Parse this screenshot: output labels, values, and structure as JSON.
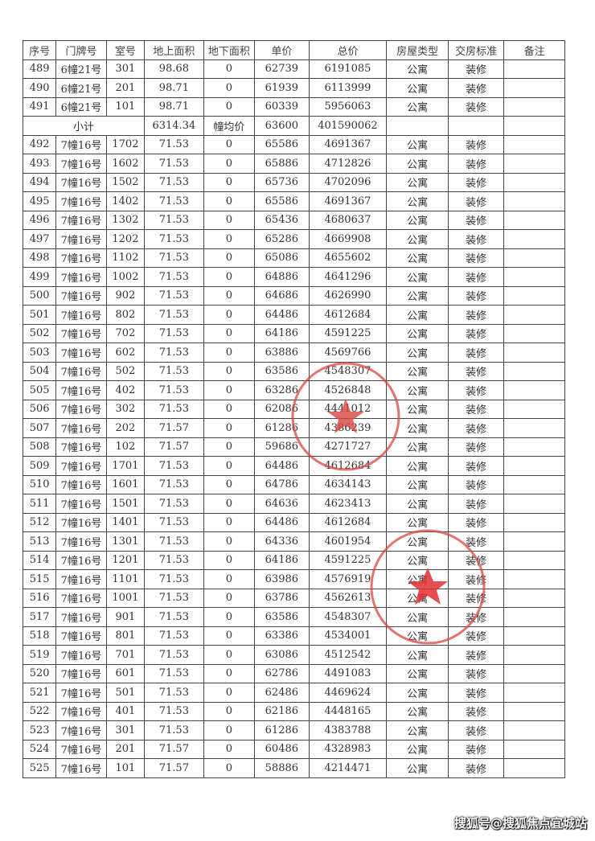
{
  "headers": [
    "序号",
    "门牌号",
    "室号",
    "地上面积",
    "地下面积",
    "单价",
    "总价",
    "房屋类型",
    "交房标准",
    "备注"
  ],
  "rows_top": [
    [
      "489",
      "6幢21号",
      "301",
      "98.68",
      "0",
      "62739",
      "6191085",
      "公寓",
      "装修",
      ""
    ],
    [
      "490",
      "6幢21号",
      "201",
      "98.71",
      "0",
      "61939",
      "6113999",
      "公寓",
      "装修",
      ""
    ],
    [
      "491",
      "6幢21号",
      "101",
      "98.71",
      "0",
      "60339",
      "5956063",
      "公寓",
      "装修",
      ""
    ]
  ],
  "subtotal": {
    "label": "小计",
    "area": "6314.34",
    "avg_label": "幢均价",
    "avg_price": "63600",
    "total": "401590062"
  },
  "rows": [
    [
      "492",
      "7幢16号",
      "1702",
      "71.53",
      "0",
      "65586",
      "4691367",
      "公寓",
      "装修",
      ""
    ],
    [
      "493",
      "7幢16号",
      "1602",
      "71.53",
      "0",
      "65886",
      "4712826",
      "公寓",
      "装修",
      ""
    ],
    [
      "494",
      "7幢16号",
      "1502",
      "71.53",
      "0",
      "65736",
      "4702096",
      "公寓",
      "装修",
      ""
    ],
    [
      "495",
      "7幢16号",
      "1402",
      "71.53",
      "0",
      "65586",
      "4691367",
      "公寓",
      "装修",
      ""
    ],
    [
      "496",
      "7幢16号",
      "1302",
      "71.53",
      "0",
      "65436",
      "4680637",
      "公寓",
      "装修",
      ""
    ],
    [
      "497",
      "7幢16号",
      "1202",
      "71.53",
      "0",
      "65286",
      "4669908",
      "公寓",
      "装修",
      ""
    ],
    [
      "498",
      "7幢16号",
      "1102",
      "71.53",
      "0",
      "65086",
      "4655602",
      "公寓",
      "装修",
      ""
    ],
    [
      "499",
      "7幢16号",
      "1002",
      "71.53",
      "0",
      "64886",
      "4641296",
      "公寓",
      "装修",
      ""
    ],
    [
      "500",
      "7幢16号",
      "902",
      "71.53",
      "0",
      "64686",
      "4626990",
      "公寓",
      "装修",
      ""
    ],
    [
      "501",
      "7幢16号",
      "802",
      "71.53",
      "0",
      "64486",
      "4612684",
      "公寓",
      "装修",
      ""
    ],
    [
      "502",
      "7幢16号",
      "702",
      "71.53",
      "0",
      "64186",
      "4591225",
      "公寓",
      "装修",
      ""
    ],
    [
      "503",
      "7幢16号",
      "602",
      "71.53",
      "0",
      "63886",
      "4569766",
      "公寓",
      "装修",
      ""
    ],
    [
      "504",
      "7幢16号",
      "502",
      "71.53",
      "0",
      "63586",
      "4548307",
      "公寓",
      "装修",
      ""
    ],
    [
      "505",
      "7幢16号",
      "402",
      "71.53",
      "0",
      "63286",
      "4526848",
      "公寓",
      "装修",
      ""
    ],
    [
      "506",
      "7幢16号",
      "302",
      "71.53",
      "0",
      "62086",
      "4441012",
      "公寓",
      "装修",
      ""
    ],
    [
      "507",
      "7幢16号",
      "202",
      "71.57",
      "0",
      "61286",
      "4386239",
      "公寓",
      "装修",
      ""
    ],
    [
      "508",
      "7幢16号",
      "102",
      "71.57",
      "0",
      "59686",
      "4271727",
      "公寓",
      "装修",
      ""
    ],
    [
      "509",
      "7幢16号",
      "1701",
      "71.53",
      "0",
      "64486",
      "4612684",
      "公寓",
      "装修",
      ""
    ],
    [
      "510",
      "7幢16号",
      "1601",
      "71.53",
      "0",
      "64786",
      "4634143",
      "公寓",
      "装修",
      ""
    ],
    [
      "511",
      "7幢16号",
      "1501",
      "71.53",
      "0",
      "64636",
      "4623413",
      "公寓",
      "装修",
      ""
    ],
    [
      "512",
      "7幢16号",
      "1401",
      "71.53",
      "0",
      "64486",
      "4612684",
      "公寓",
      "装修",
      ""
    ],
    [
      "513",
      "7幢16号",
      "1301",
      "71.53",
      "0",
      "64336",
      "4601954",
      "公寓",
      "装修",
      ""
    ],
    [
      "514",
      "7幢16号",
      "1201",
      "71.53",
      "0",
      "64186",
      "4591225",
      "公寓",
      "装修",
      ""
    ],
    [
      "515",
      "7幢16号",
      "1101",
      "71.53",
      "0",
      "63986",
      "4576919",
      "公寓",
      "装修",
      ""
    ],
    [
      "516",
      "7幢16号",
      "1001",
      "71.53",
      "0",
      "63786",
      "4562613",
      "公寓",
      "装修",
      ""
    ],
    [
      "517",
      "7幢16号",
      "901",
      "71.53",
      "0",
      "63586",
      "4548307",
      "公寓",
      "装修",
      ""
    ],
    [
      "518",
      "7幢16号",
      "801",
      "71.53",
      "0",
      "63386",
      "4534001",
      "公寓",
      "装修",
      ""
    ],
    [
      "519",
      "7幢16号",
      "701",
      "71.53",
      "0",
      "63086",
      "4512542",
      "公寓",
      "装修",
      ""
    ],
    [
      "520",
      "7幢16号",
      "601",
      "71.53",
      "0",
      "62786",
      "4491083",
      "公寓",
      "装修",
      ""
    ],
    [
      "521",
      "7幢16号",
      "501",
      "71.53",
      "0",
      "62486",
      "4469624",
      "公寓",
      "装修",
      ""
    ],
    [
      "522",
      "7幢16号",
      "401",
      "71.53",
      "0",
      "62186",
      "4448165",
      "公寓",
      "装修",
      ""
    ],
    [
      "523",
      "7幢16号",
      "301",
      "71.53",
      "0",
      "61286",
      "4383788",
      "公寓",
      "装修",
      ""
    ],
    [
      "524",
      "7幢16号",
      "201",
      "71.57",
      "0",
      "60486",
      "4328983",
      "公寓",
      "装修",
      ""
    ],
    [
      "525",
      "7幢16号",
      "101",
      "71.57",
      "0",
      "58886",
      "4214471",
      "公寓",
      "装修",
      ""
    ]
  ],
  "watermark": "搜狐号@搜狐焦点宜城站",
  "stamp_color": "#d9443f"
}
